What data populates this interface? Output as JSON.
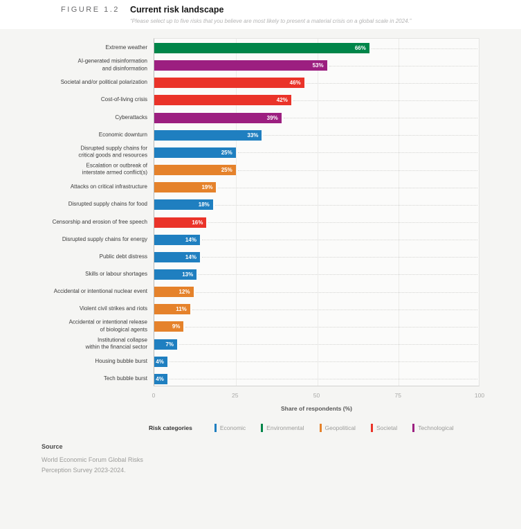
{
  "header": {
    "figure_label": "FIGURE 1.2",
    "title": "Current risk landscape",
    "subtitle": "“Please select up to five risks that you believe are most likely to present a material crisis on a global scale in 2024.”"
  },
  "chart_data": {
    "type": "bar",
    "orientation": "horizontal",
    "title": "Current risk landscape",
    "xlabel": "Share of respondents (%)",
    "xlim": [
      0,
      100
    ],
    "xticks": [
      0,
      25,
      50,
      75,
      100
    ],
    "grid": "vertical",
    "rows": [
      {
        "label": [
          "Extreme weather"
        ],
        "value": 66,
        "value_label": "66%",
        "category": "Environmental"
      },
      {
        "label": [
          "AI-generated misinformation",
          "and disinformation"
        ],
        "value": 53,
        "value_label": "53%",
        "category": "Technological"
      },
      {
        "label": [
          "Societal and/or political polarization"
        ],
        "value": 46,
        "value_label": "46%",
        "category": "Societal"
      },
      {
        "label": [
          "Cost-of-living crisis"
        ],
        "value": 42,
        "value_label": "42%",
        "category": "Societal"
      },
      {
        "label": [
          "Cyberattacks"
        ],
        "value": 39,
        "value_label": "39%",
        "category": "Technological"
      },
      {
        "label": [
          "Economic downturn"
        ],
        "value": 33,
        "value_label": "33%",
        "category": "Economic"
      },
      {
        "label": [
          "Disrupted supply chains for",
          "critical goods and resources"
        ],
        "value": 25,
        "value_label": "25%",
        "category": "Economic"
      },
      {
        "label": [
          "Escalation or outbreak of",
          "interstate armed conflict(s)"
        ],
        "value": 25,
        "value_label": "25%",
        "category": "Geopolitical"
      },
      {
        "label": [
          "Attacks on critical infrastructure"
        ],
        "value": 19,
        "value_label": "19%",
        "category": "Geopolitical"
      },
      {
        "label": [
          "Disrupted supply chains for food"
        ],
        "value": 18,
        "value_label": "18%",
        "category": "Economic"
      },
      {
        "label": [
          "Censorship and erosion of free speech"
        ],
        "value": 16,
        "value_label": "16%",
        "category": "Societal"
      },
      {
        "label": [
          "Disrupted supply chains for energy"
        ],
        "value": 14,
        "value_label": "14%",
        "category": "Economic"
      },
      {
        "label": [
          "Public debt distress"
        ],
        "value": 14,
        "value_label": "14%",
        "category": "Economic"
      },
      {
        "label": [
          "Skills or labour shortages"
        ],
        "value": 13,
        "value_label": "13%",
        "category": "Economic"
      },
      {
        "label": [
          "Accidental or intentional nuclear event"
        ],
        "value": 12,
        "value_label": "12%",
        "category": "Geopolitical"
      },
      {
        "label": [
          "Violent civil strikes and riots"
        ],
        "value": 11,
        "value_label": "11%",
        "category": "Geopolitical"
      },
      {
        "label": [
          "Accidental or intentional release",
          "of biological agents"
        ],
        "value": 9,
        "value_label": "9%",
        "category": "Geopolitical"
      },
      {
        "label": [
          "Institutional collapse",
          "within the financial sector"
        ],
        "value": 7,
        "value_label": "7%",
        "category": "Economic"
      },
      {
        "label": [
          "Housing bubble burst"
        ],
        "value": 4,
        "value_label": "4%",
        "category": "Economic"
      },
      {
        "label": [
          "Tech bubble burst"
        ],
        "value": 4,
        "value_label": "4%",
        "category": "Economic"
      }
    ],
    "category_colors": {
      "Economic": "#1F7FC0",
      "Environmental": "#008549",
      "Geopolitical": "#E5822B",
      "Societal": "#EA3329",
      "Technological": "#9C1F80"
    },
    "legend": {
      "label": "Risk categories",
      "position": "bottom",
      "entries": [
        {
          "name": "Economic",
          "color": "#1F7FC0"
        },
        {
          "name": "Environmental",
          "color": "#008549"
        },
        {
          "name": "Geopolitical",
          "color": "#E5822B"
        },
        {
          "name": "Societal",
          "color": "#EA3329"
        },
        {
          "name": "Technological",
          "color": "#9C1F80"
        }
      ]
    }
  },
  "source": {
    "label": "Source",
    "lines": [
      "World Economic Forum Global Risks",
      "Perception Survey 2023-2024."
    ]
  }
}
